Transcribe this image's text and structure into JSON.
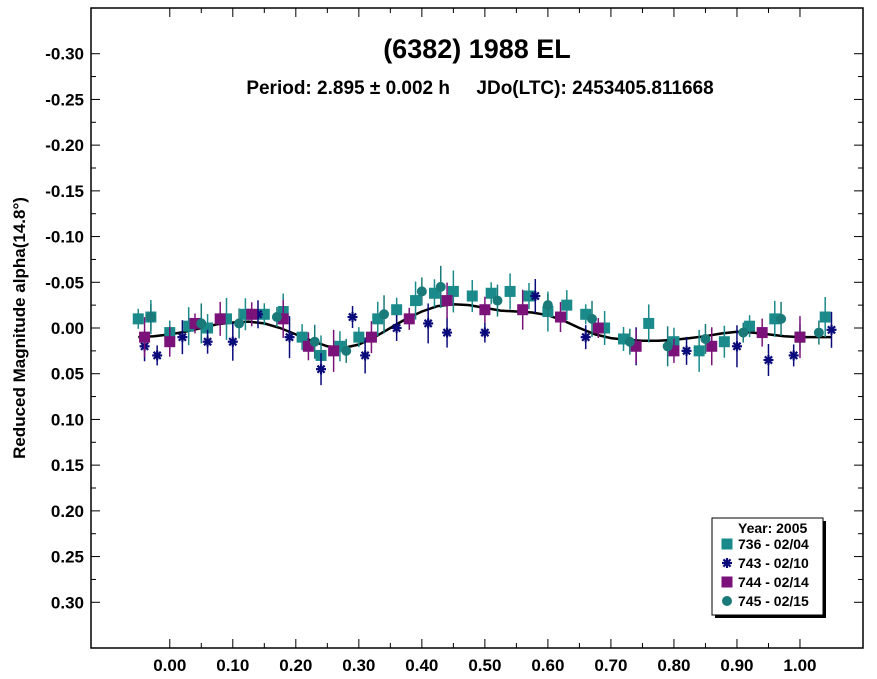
{
  "chart_data": {
    "type": "scatter",
    "title": "(6382) 1988 EL",
    "subtitle": "Period: 2.895 ± 0.002 h     JDo(LTC): 2453405.811668",
    "xlabel": "",
    "ylabel": "Reduced Magnitude alpha(14.8°)",
    "xlim": [
      -0.125,
      1.1
    ],
    "ylim": [
      0.35,
      -0.35
    ],
    "y_inverted": true,
    "grid": false,
    "x_ticks": [
      0.0,
      0.1,
      0.2,
      0.3,
      0.4,
      0.5,
      0.6,
      0.7,
      0.8,
      0.9,
      1.0
    ],
    "x_tick_labels": [
      "0.00",
      "0.10",
      "0.20",
      "0.30",
      "0.40",
      "0.50",
      "0.60",
      "0.70",
      "0.80",
      "0.90",
      "1.00"
    ],
    "y_ticks": [
      -0.3,
      -0.25,
      -0.2,
      -0.15,
      -0.1,
      -0.05,
      0.0,
      0.05,
      0.1,
      0.15,
      0.2,
      0.25,
      0.3
    ],
    "y_tick_labels": [
      "-0.30",
      "-0.25",
      "-0.20",
      "-0.15",
      "-0.10",
      "-0.05",
      "0.00",
      "0.05",
      "0.10",
      "0.15",
      "0.20",
      "0.25",
      "0.30"
    ],
    "legend": {
      "placement": "bottom-right",
      "title": "Year: 2005",
      "entries": [
        "736 - 02/04",
        "743 - 02/10",
        "744 - 02/14",
        "745 - 02/15"
      ]
    },
    "series": [
      {
        "name": "736 - 02/04",
        "marker": "square",
        "color": "#1a8a8a",
        "x": [
          -0.05,
          -0.03,
          0.0,
          0.03,
          0.06,
          0.09,
          0.12,
          0.15,
          0.18,
          0.21,
          0.24,
          0.27,
          0.3,
          0.33,
          0.36,
          0.39,
          0.42,
          0.45,
          0.48,
          0.51,
          0.54,
          0.57,
          0.6,
          0.63,
          0.66,
          0.69,
          0.72,
          0.76,
          0.8,
          0.84,
          0.88,
          0.92,
          0.96,
          1.0,
          1.04
        ],
        "y": [
          -0.01,
          -0.012,
          0.005,
          -0.002,
          0.0,
          -0.01,
          -0.015,
          -0.015,
          -0.018,
          0.01,
          0.03,
          0.02,
          0.01,
          -0.01,
          -0.02,
          -0.03,
          -0.038,
          -0.04,
          -0.035,
          -0.038,
          -0.04,
          -0.035,
          -0.018,
          -0.025,
          -0.015,
          0.0,
          0.012,
          -0.005,
          0.015,
          0.025,
          0.015,
          -0.002,
          -0.01,
          0.01,
          -0.012
        ]
      },
      {
        "name": "743 - 02/10",
        "marker": "asterisk",
        "color": "#0a0a7a",
        "x": [
          -0.04,
          -0.02,
          0.02,
          0.06,
          0.1,
          0.14,
          0.19,
          0.24,
          0.29,
          0.31,
          0.36,
          0.41,
          0.44,
          0.5,
          0.58,
          0.66,
          0.74,
          0.82,
          0.9,
          0.95,
          0.99,
          1.05
        ],
        "y": [
          0.02,
          0.03,
          0.01,
          0.015,
          0.015,
          -0.015,
          0.01,
          0.045,
          -0.012,
          0.03,
          0.0,
          -0.005,
          0.005,
          0.005,
          -0.035,
          0.01,
          0.02,
          0.025,
          0.02,
          0.035,
          0.03,
          0.002
        ]
      },
      {
        "name": "744 - 02/14",
        "marker": "square",
        "color": "#7a127a",
        "x": [
          -0.04,
          0.0,
          0.04,
          0.08,
          0.13,
          0.18,
          0.22,
          0.26,
          0.32,
          0.38,
          0.44,
          0.5,
          0.56,
          0.62,
          0.68,
          0.74,
          0.8,
          0.86,
          0.94,
          1.0
        ],
        "y": [
          0.01,
          0.015,
          -0.005,
          -0.01,
          -0.015,
          -0.01,
          0.02,
          0.025,
          0.01,
          -0.01,
          -0.03,
          -0.02,
          -0.02,
          -0.012,
          0.0,
          0.02,
          0.025,
          0.02,
          0.005,
          0.01
        ]
      },
      {
        "name": "745 - 02/15",
        "marker": "circle",
        "color": "#1a7a7a",
        "x": [
          -0.03,
          0.05,
          0.11,
          0.17,
          0.23,
          0.28,
          0.34,
          0.4,
          0.43,
          0.52,
          0.6,
          0.67,
          0.73,
          0.79,
          0.85,
          0.91,
          0.97,
          1.03
        ],
        "y": [
          -0.012,
          -0.005,
          -0.005,
          -0.012,
          0.015,
          0.025,
          -0.015,
          -0.04,
          -0.045,
          -0.03,
          -0.025,
          -0.01,
          0.015,
          0.02,
          0.012,
          0.005,
          -0.01,
          0.005
        ]
      }
    ],
    "fit_curve": {
      "x": [
        -0.05,
        -0.025,
        0.0,
        0.025,
        0.05,
        0.075,
        0.1,
        0.125,
        0.15,
        0.175,
        0.2,
        0.225,
        0.25,
        0.275,
        0.3,
        0.325,
        0.35,
        0.375,
        0.4,
        0.425,
        0.45,
        0.475,
        0.5,
        0.525,
        0.55,
        0.575,
        0.6,
        0.625,
        0.65,
        0.675,
        0.7,
        0.725,
        0.75,
        0.775,
        0.8,
        0.825,
        0.85,
        0.875,
        0.9,
        0.925,
        0.95,
        0.975,
        1.0,
        1.025,
        1.05
      ],
      "y": [
        0.01,
        0.009,
        0.007,
        0.004,
        0.0,
        -0.004,
        -0.006,
        -0.007,
        -0.005,
        0.0,
        0.007,
        0.014,
        0.02,
        0.022,
        0.018,
        0.01,
        0.0,
        -0.01,
        -0.018,
        -0.024,
        -0.026,
        -0.025,
        -0.022,
        -0.019,
        -0.018,
        -0.017,
        -0.014,
        -0.008,
        0.0,
        0.007,
        0.011,
        0.013,
        0.014,
        0.014,
        0.013,
        0.011,
        0.009,
        0.006,
        0.004,
        0.005,
        0.007,
        0.009,
        0.01,
        0.01,
        0.01
      ]
    }
  }
}
